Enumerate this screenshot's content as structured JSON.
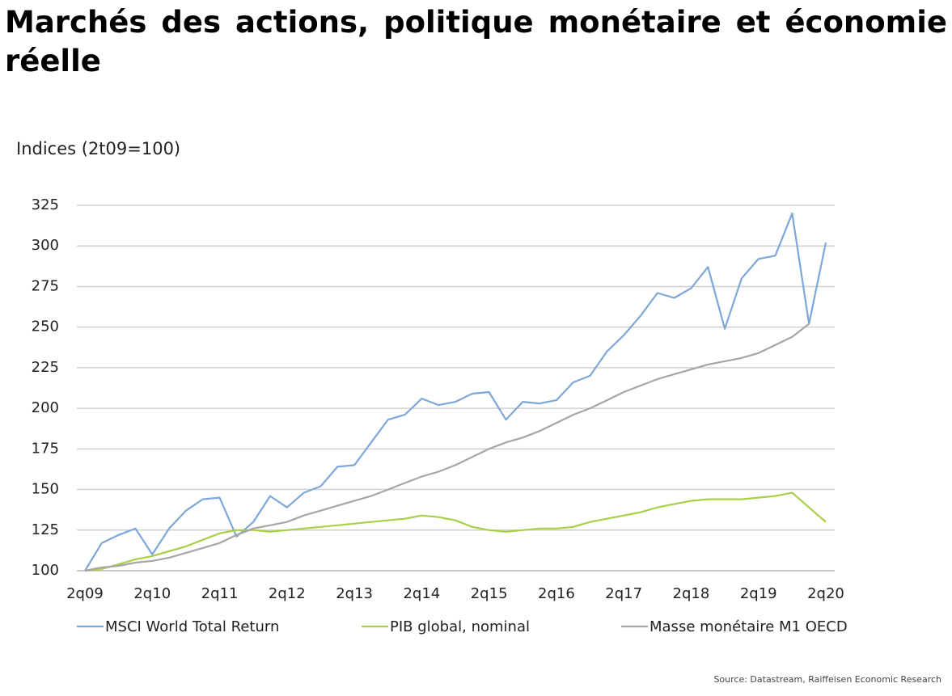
{
  "chart_data": {
    "type": "line",
    "title": "Marchés des actions, politique monétaire et économie réelle",
    "y_label": "Indices (2t09=100)",
    "source": "Source: Datastream, Raiffeisen Economic Research",
    "categories": [
      "2q09",
      null,
      null,
      null,
      "2q10",
      null,
      null,
      null,
      "2q11",
      null,
      null,
      null,
      "2q12",
      null,
      null,
      null,
      "2q13",
      null,
      null,
      null,
      "2q14",
      null,
      null,
      null,
      "2q15",
      null,
      null,
      null,
      "2q16",
      null,
      null,
      null,
      "2q17",
      null,
      null,
      null,
      "2q18",
      null,
      null,
      null,
      "2q19",
      null,
      null,
      null,
      "2q20"
    ],
    "series": [
      {
        "name": "MSCI World Total Return",
        "color": "#7da7d9",
        "values": [
          100,
          117,
          122,
          126,
          110,
          126,
          137,
          144,
          145,
          121,
          130,
          146,
          139,
          148,
          152,
          164,
          165,
          179,
          193,
          196,
          206,
          202,
          204,
          209,
          210,
          193,
          204,
          203,
          205,
          216,
          220,
          235,
          245,
          257,
          271,
          268,
          274,
          287,
          249,
          280,
          292,
          294,
          320,
          252,
          302
        ]
      },
      {
        "name": "PIB global, nominal",
        "color": "#a9cf46",
        "values": [
          100,
          101,
          104,
          107,
          109,
          112,
          115,
          119,
          123,
          125,
          125,
          124,
          125,
          126,
          127,
          128,
          129,
          130,
          131,
          132,
          134,
          133,
          131,
          127,
          125,
          124,
          125,
          126,
          126,
          127,
          130,
          132,
          134,
          136,
          139,
          141,
          143,
          144,
          144,
          144,
          145,
          146,
          148,
          139,
          130
        ]
      },
      {
        "name": "Masse monétaire M1 OECD",
        "color": "#a6a6a6",
        "values": [
          100,
          102,
          103,
          105,
          106,
          108,
          111,
          114,
          117,
          122,
          126,
          128,
          130,
          134,
          137,
          140,
          143,
          146,
          150,
          154,
          158,
          161,
          165,
          170,
          175,
          179,
          182,
          186,
          191,
          196,
          200,
          205,
          210,
          214,
          218,
          221,
          224,
          227,
          229,
          231,
          234,
          239,
          244,
          252,
          null
        ]
      }
    ],
    "ylim": [
      100,
      325
    ],
    "yticks": [
      100,
      125,
      150,
      175,
      200,
      225,
      250,
      275,
      300,
      325
    ],
    "grid": true
  }
}
